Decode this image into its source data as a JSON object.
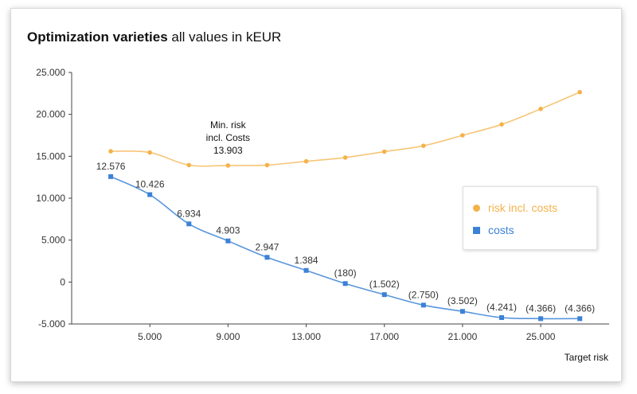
{
  "title": {
    "bold": "Optimization varieties",
    "rest": " all values in kEUR"
  },
  "chart_data": {
    "type": "line",
    "x": [
      3000,
      5000,
      7000,
      9000,
      11000,
      13000,
      15000,
      17000,
      19000,
      21000,
      23000,
      25000,
      27000
    ],
    "xticks": [
      5000,
      9000,
      13000,
      17000,
      21000,
      25000
    ],
    "xtick_labels": [
      "5.000",
      "9.000",
      "13.000",
      "17.000",
      "21.000",
      "25.000"
    ],
    "xlim": [
      1000,
      28500
    ],
    "xlabel": "Target risk",
    "ylim": [
      -5000,
      25000
    ],
    "yticks": [
      -5000,
      0,
      5000,
      10000,
      15000,
      20000,
      25000
    ],
    "ytick_labels": [
      "-5.000",
      "0",
      "5.000",
      "10.000",
      "15.000",
      "20.000",
      "25.000"
    ],
    "grid": false,
    "legend_position": "right",
    "series": [
      {
        "name": "risk incl. costs",
        "color": "#f4b24a",
        "marker": "circle",
        "values": [
          15600,
          15450,
          13950,
          13903,
          13950,
          14400,
          14850,
          15550,
          16250,
          17500,
          18800,
          20650,
          22650
        ]
      },
      {
        "name": "costs",
        "color": "#3b82d6",
        "marker": "square",
        "values": [
          12576,
          10426,
          6934,
          4903,
          2947,
          1384,
          -180,
          -1502,
          -2750,
          -3502,
          -4241,
          -4366,
          -4366
        ],
        "data_labels": [
          "12.576",
          "10.426",
          "6.934",
          "4.903",
          "2.947",
          "1.384",
          "(180)",
          "(1.502)",
          "(2.750)",
          "(3.502)",
          "(4.241)",
          "(4.366)",
          "(4.366)"
        ]
      }
    ],
    "annotation": {
      "lines": [
        "Min. risk",
        "incl. Costs",
        "13.903"
      ],
      "x": 9000
    }
  }
}
